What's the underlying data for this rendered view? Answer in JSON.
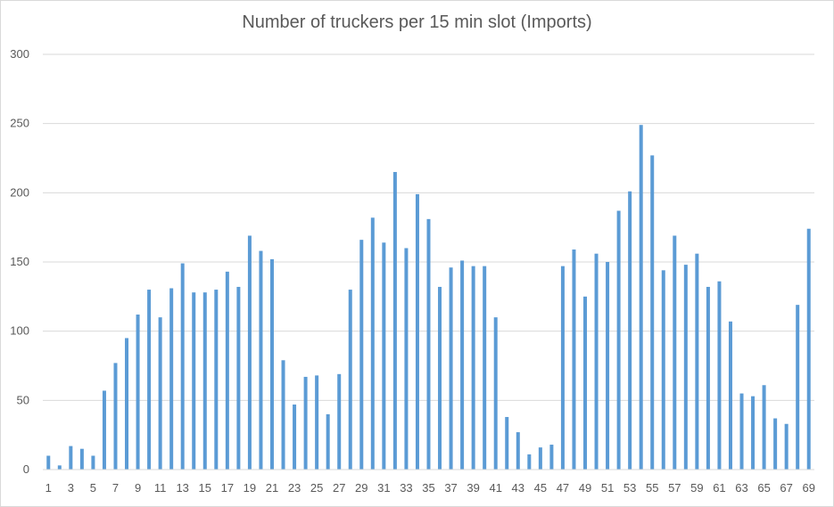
{
  "chart_data": {
    "type": "bar",
    "title": "Number of truckers per 15 min slot (Imports)",
    "xlabel": "",
    "ylabel": "",
    "ylim": [
      0,
      300
    ],
    "yticks": [
      0,
      50,
      100,
      150,
      200,
      250,
      300
    ],
    "grid": true,
    "legend": "none",
    "bar_color": "#5b9bd5",
    "grid_color": "#d9d9d9",
    "categories": [
      1,
      2,
      3,
      4,
      5,
      6,
      7,
      8,
      9,
      10,
      11,
      12,
      13,
      14,
      15,
      16,
      17,
      18,
      19,
      20,
      21,
      22,
      23,
      24,
      25,
      26,
      27,
      28,
      29,
      30,
      31,
      32,
      33,
      34,
      35,
      36,
      37,
      38,
      39,
      40,
      41,
      42,
      43,
      44,
      45,
      46,
      47,
      48,
      49,
      50,
      51,
      52,
      53,
      54,
      55,
      56,
      57,
      58,
      59,
      60,
      61,
      62,
      63,
      64,
      65,
      66,
      67,
      68,
      69
    ],
    "x_tick_labels": [
      "1",
      "3",
      "5",
      "7",
      "9",
      "11",
      "13",
      "15",
      "17",
      "19",
      "21",
      "23",
      "25",
      "27",
      "29",
      "31",
      "33",
      "35",
      "37",
      "39",
      "41",
      "43",
      "45",
      "47",
      "49",
      "51",
      "53",
      "55",
      "57",
      "59",
      "61",
      "63",
      "65",
      "67",
      "69"
    ],
    "values": [
      10,
      3,
      17,
      15,
      10,
      57,
      77,
      95,
      112,
      130,
      110,
      131,
      149,
      128,
      128,
      130,
      143,
      132,
      169,
      158,
      152,
      79,
      47,
      67,
      68,
      40,
      69,
      130,
      166,
      182,
      164,
      215,
      160,
      199,
      181,
      132,
      146,
      151,
      147,
      147,
      110,
      38,
      27,
      11,
      16,
      18,
      147,
      159,
      125,
      156,
      150,
      187,
      201,
      249,
      227,
      144,
      169,
      148,
      156,
      132,
      136,
      107,
      55,
      53,
      61,
      37,
      33,
      119,
      174
    ]
  }
}
